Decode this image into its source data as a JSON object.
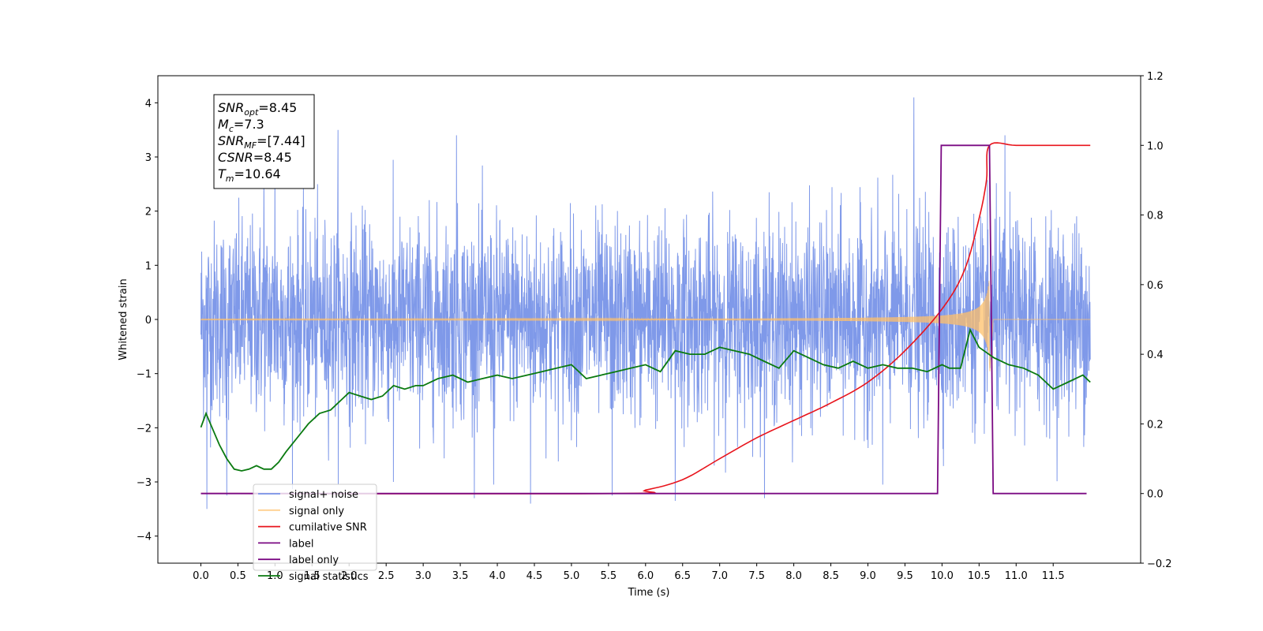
{
  "chart_data": {
    "type": "line",
    "title": "",
    "xlabel": "Time (s)",
    "ylabel": "Whitened strain",
    "y2label": "",
    "xlim": [
      -0.58,
      12.68
    ],
    "ylim": [
      -4.5,
      4.5
    ],
    "y2lim": [
      -0.2,
      1.2
    ],
    "xticks": [
      "0.0",
      "0.5",
      "1.0",
      "1.5",
      "2.0",
      "2.5",
      "3.0",
      "3.5",
      "4.0",
      "4.5",
      "5.0",
      "5.5",
      "6.0",
      "6.5",
      "7.0",
      "7.5",
      "8.0",
      "8.5",
      "9.0",
      "9.5",
      "10.0",
      "10.5",
      "11.0",
      "11.5"
    ],
    "yticks": [
      "4",
      "3",
      "2",
      "1",
      "0",
      "−1",
      "−2",
      "−3",
      "−4"
    ],
    "y2ticks": [
      "1.2",
      "1.0",
      "0.8",
      "0.6",
      "0.4",
      "0.2",
      "0.0",
      "−0.2"
    ],
    "grid": false,
    "legend_position": "lower-left",
    "annotation": {
      "lines": [
        {
          "base": "SNR",
          "sub": "opt",
          "rest": "=8.45"
        },
        {
          "base": "M",
          "sub": "c",
          "rest": "=7.3"
        },
        {
          "base": "SNR",
          "sub": "MF",
          "rest": "=[7.44]"
        },
        {
          "base": "CSNR",
          "sub": "",
          "rest": "=8.45"
        },
        {
          "base": "T",
          "sub": "m",
          "rest": "=10.64"
        }
      ]
    },
    "series": [
      {
        "name": "signal+ noise",
        "color": "#7893e8",
        "axis": "left",
        "x_range": [
          0.0,
          12.0
        ],
        "std": 0.9,
        "spikes": [
          [
            9.62,
            4.1
          ],
          [
            1.85,
            3.5
          ],
          [
            3.45,
            3.4
          ],
          [
            10.85,
            3.4
          ],
          [
            0.08,
            -3.5
          ],
          [
            4.45,
            -3.4
          ],
          [
            6.4,
            -3.35
          ],
          [
            0.85,
            2.9
          ],
          [
            1.0,
            3.0
          ],
          [
            2.6,
            -3.0
          ],
          [
            5.55,
            -3.25
          ],
          [
            3.95,
            -3.05
          ],
          [
            9.2,
            -3.05
          ],
          [
            0.35,
            -3.25
          ]
        ]
      },
      {
        "name": "signal only",
        "color": "#ffc06a",
        "axis": "left",
        "x_range": [
          0.0,
          12.0
        ],
        "merger_time": 10.64,
        "peak_amplitude": 0.78
      },
      {
        "name": "cumilative SNR",
        "color": "#e8141c",
        "axis": "right",
        "x": [
          0.0,
          5.6,
          6.0,
          6.5,
          7.0,
          7.5,
          8.0,
          8.5,
          9.0,
          9.5,
          10.0,
          10.3,
          10.5,
          10.6,
          10.64,
          11.0,
          11.5,
          12.0
        ],
        "y": [
          0.0,
          0.0,
          0.01,
          0.04,
          0.1,
          0.16,
          0.21,
          0.26,
          0.32,
          0.41,
          0.53,
          0.64,
          0.79,
          0.9,
          1.0,
          1.0,
          1.0,
          1.0
        ]
      },
      {
        "name": "label",
        "color": "#7b0a83",
        "axis": "right",
        "x": [
          0.0,
          9.94,
          9.99,
          10.64,
          10.69,
          11.95
        ],
        "y": [
          0.0,
          0.0,
          1.0,
          1.0,
          0.0,
          0.0
        ]
      },
      {
        "name": "label only",
        "color": "#7b0a83",
        "axis": "right",
        "hidden": true,
        "x": [],
        "y": []
      },
      {
        "name": "signal statistics",
        "color": "#0a7a10",
        "axis": "right",
        "x": [
          0.0,
          0.07,
          0.15,
          0.25,
          0.35,
          0.45,
          0.55,
          0.65,
          0.75,
          0.85,
          0.95,
          1.05,
          1.15,
          1.3,
          1.45,
          1.6,
          1.75,
          1.9,
          2.0,
          2.15,
          2.3,
          2.45,
          2.6,
          2.75,
          2.9,
          3.0,
          3.2,
          3.4,
          3.6,
          3.8,
          4.0,
          4.2,
          4.4,
          4.6,
          4.8,
          5.0,
          5.2,
          5.4,
          5.6,
          5.8,
          6.0,
          6.2,
          6.4,
          6.6,
          6.8,
          7.0,
          7.2,
          7.4,
          7.6,
          7.8,
          8.0,
          8.2,
          8.4,
          8.6,
          8.8,
          9.0,
          9.2,
          9.4,
          9.6,
          9.8,
          10.0,
          10.1,
          10.25,
          10.38,
          10.5,
          10.7,
          10.9,
          11.1,
          11.3,
          11.5,
          11.7,
          11.9,
          12.0
        ],
        "y": [
          0.19,
          0.23,
          0.19,
          0.14,
          0.1,
          0.07,
          0.065,
          0.07,
          0.08,
          0.07,
          0.07,
          0.09,
          0.12,
          0.16,
          0.2,
          0.23,
          0.24,
          0.27,
          0.29,
          0.28,
          0.27,
          0.28,
          0.31,
          0.3,
          0.31,
          0.31,
          0.33,
          0.34,
          0.32,
          0.33,
          0.34,
          0.33,
          0.34,
          0.35,
          0.36,
          0.37,
          0.33,
          0.34,
          0.35,
          0.36,
          0.37,
          0.35,
          0.41,
          0.4,
          0.4,
          0.42,
          0.41,
          0.4,
          0.38,
          0.36,
          0.41,
          0.39,
          0.37,
          0.36,
          0.38,
          0.36,
          0.37,
          0.36,
          0.36,
          0.35,
          0.37,
          0.36,
          0.36,
          0.47,
          0.42,
          0.39,
          0.37,
          0.36,
          0.34,
          0.3,
          0.32,
          0.34,
          0.32
        ]
      }
    ]
  }
}
